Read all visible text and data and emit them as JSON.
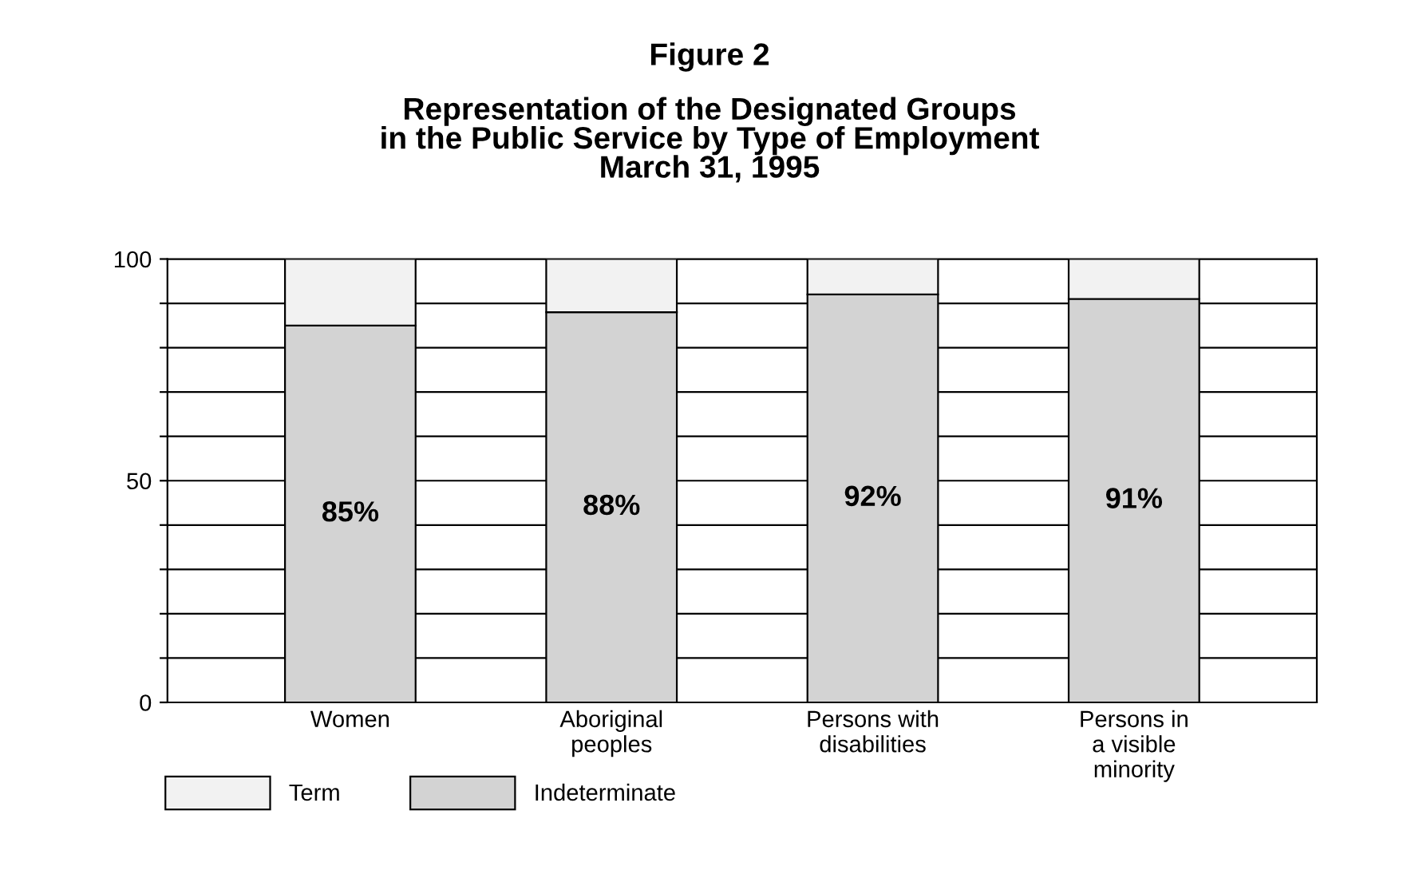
{
  "chart_data": {
    "type": "bar",
    "stacked": true,
    "title": "Figure 2",
    "subtitle": "Representation of the Designated Groups\nin the Public Service by Type of Employment\nMarch 31, 1995",
    "categories": [
      "Women",
      "Aboriginal\npeoples",
      "Persons with\ndisabilities",
      "Persons in\na visible\nminority"
    ],
    "series": [
      {
        "name": "Indeterminate",
        "color": "#d3d3d3",
        "values": [
          85,
          88,
          92,
          91
        ],
        "value_labels": [
          "85%",
          "88%",
          "92%",
          "91%"
        ]
      },
      {
        "name": "Term",
        "color": "#f2f2f2",
        "values": [
          15,
          12,
          8,
          9
        ]
      }
    ],
    "ylim": [
      0,
      100
    ],
    "yticks": [
      0,
      {
        "value": 10,
        "label": null
      },
      {
        "value": 20,
        "label": null
      },
      {
        "value": 30,
        "label": null
      },
      {
        "value": 40,
        "label": null
      },
      50,
      {
        "value": 60,
        "label": null
      },
      {
        "value": 70,
        "label": null
      },
      {
        "value": 80,
        "label": null
      },
      {
        "value": 90,
        "label": null
      },
      100
    ],
    "grid": "y",
    "legend": "bottom"
  }
}
